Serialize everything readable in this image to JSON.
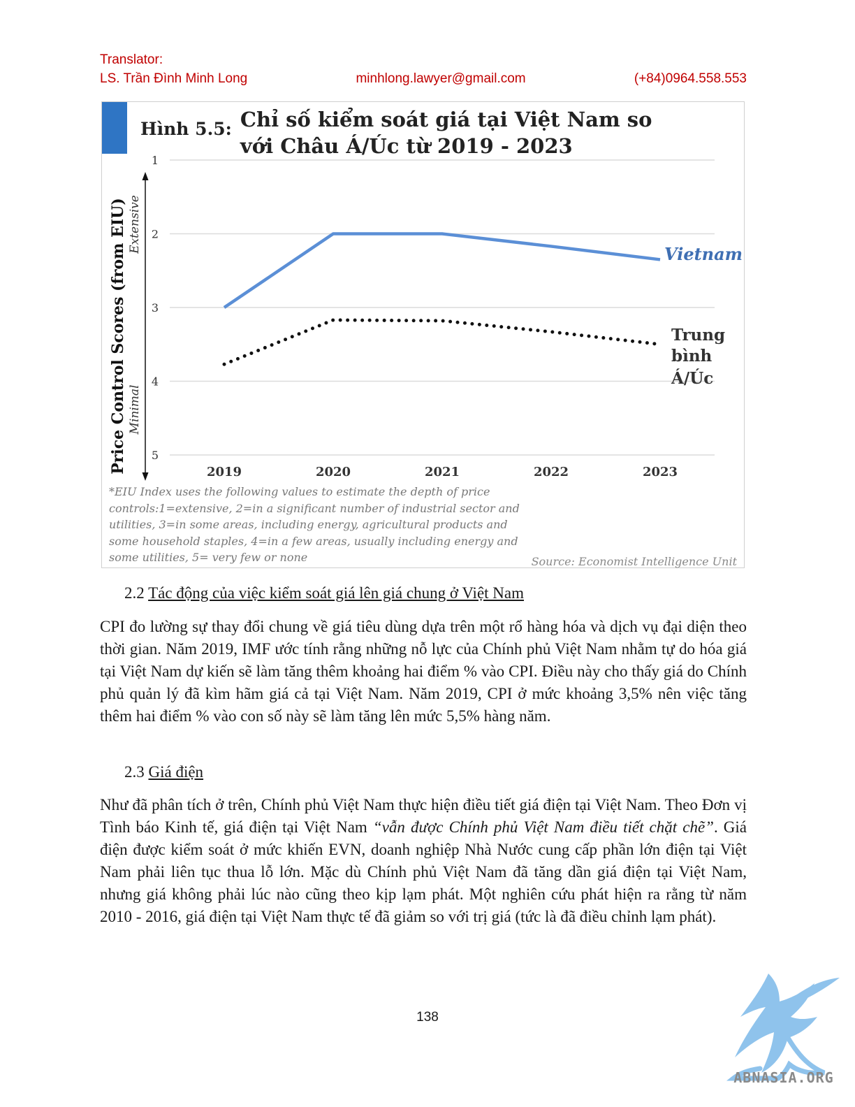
{
  "header": {
    "label": "Translator:",
    "name": "LS. Trần Đình Minh Long",
    "email": "minhlong.lawyer@gmail.com",
    "phone": "(+84)0964.558.553"
  },
  "figure": {
    "number": "Hình 5.5:",
    "title": "Chỉ số kiểm soát giá tại Việt Nam so với Châu Á/Úc từ 2019 - 2023",
    "ylabel": "Price Control Scores (from EIU)",
    "y_top_label": "Extensive",
    "y_bottom_label": "Minimal",
    "series_labels": {
      "vietnam": "Vietnam",
      "avg_line1": "Trung",
      "avg_line2": "bình",
      "avg_line3": "Á/Úc"
    },
    "note": "*EIU Index uses the following values to estimate the depth of price controls:1=extensive, 2=in a significant number of industrial sector and utilities, 3=in some areas, including energy, agricultural products and some household staples, 4=in a few areas, usually including energy and some utilities, 5= very few or none",
    "source": "Source: Economist Intelligence Unit",
    "colors": {
      "vietnam": "#5b8fd6",
      "average": "#111111",
      "bar": "#2f75c4"
    }
  },
  "chart_data": {
    "type": "line",
    "x": [
      "2019",
      "2020",
      "2021",
      "2022",
      "2023"
    ],
    "y_ticks": [
      1,
      2,
      3,
      4,
      5
    ],
    "ylim": [
      1,
      5
    ],
    "y_inverted": true,
    "grid": true,
    "series": [
      {
        "name": "Vietnam",
        "style": "solid",
        "values": [
          3,
          2,
          2,
          2.17,
          2.35
        ]
      },
      {
        "name": "Trung bình Á/Úc",
        "style": "dotted",
        "values": [
          3.77,
          3.17,
          3.18,
          3.33,
          3.5
        ]
      }
    ]
  },
  "section_22": {
    "number": "2.2",
    "title": "Tác động của việc kiểm soát giá lên giá chung ở Việt Nam",
    "body": "CPI đo lường sự thay đổi chung về giá tiêu dùng dựa trên một rổ hàng hóa và dịch vụ đại diện theo thời gian. Năm 2019, IMF ước tính rằng những nỗ lực của Chính phủ Việt Nam nhằm tự do hóa giá tại Việt Nam dự kiến sẽ làm tăng thêm khoảng hai điểm % vào CPI. Điều này cho thấy giá do Chính phủ quản lý đã kìm hãm giá cả tại Việt Nam. Năm 2019, CPI ở mức khoảng 3,5% nên việc tăng thêm hai điểm % vào con số này sẽ làm tăng lên mức 5,5% hàng năm."
  },
  "section_23": {
    "number": "2.3",
    "title": "Giá điện",
    "body_start": "Như đã phân tích ở trên, Chính phủ Việt Nam thực hiện điều tiết giá điện tại Việt Nam. Theo Đơn vị Tình báo Kinh tế, giá điện tại Việt Nam ",
    "body_quote": "“vẫn được Chính phủ Việt Nam điều tiết chặt chẽ”",
    "body_end": ". Giá điện được kiểm soát ở mức khiến EVN, doanh nghiệp Nhà Nước cung cấp phần lớn điện tại Việt Nam phải liên tục thua lỗ lớn. Mặc dù Chính phủ Việt Nam đã tăng dần giá điện tại Việt Nam, nhưng giá không phải lúc nào cũng theo kịp lạm phát. Một nghiên cứu phát hiện ra rằng từ năm 2010 - 2016, giá điện tại Việt Nam thực tế đã giảm so với trị giá (tức là đã điều chỉnh lạm phát)."
  },
  "page_number": "138",
  "logo": {
    "text": "ABNASIA.ORG",
    "icon": "griffin-logo-icon",
    "color": "#8fc3ec"
  }
}
